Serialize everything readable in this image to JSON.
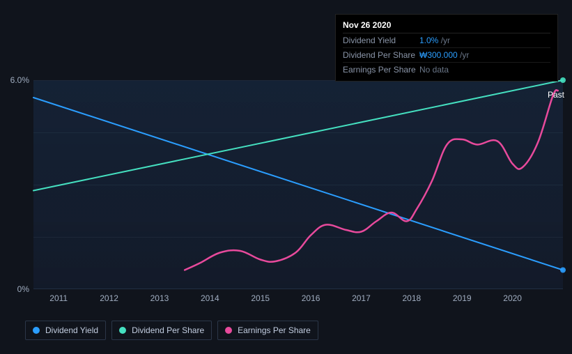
{
  "chart": {
    "type": "line",
    "background_color": "#10141c",
    "plot_gradient_top": "rgba(30,60,100,0.35)",
    "plot_gradient_bottom": "rgba(20,30,50,0.6)",
    "grid_color": "rgba(100,120,150,0.12)",
    "axis_label_color": "#a0adc0",
    "axis_fontsize": 12,
    "xlim": [
      2010.5,
      2021.0
    ],
    "ylim": [
      0,
      6
    ],
    "y_ticks": [
      {
        "value": 0,
        "label": "0%"
      },
      {
        "value": 6,
        "label": "6.0%"
      }
    ],
    "x_ticks": [
      {
        "value": 2011,
        "label": "2011"
      },
      {
        "value": 2012,
        "label": "2012"
      },
      {
        "value": 2013,
        "label": "2013"
      },
      {
        "value": 2014,
        "label": "2014"
      },
      {
        "value": 2015,
        "label": "2015"
      },
      {
        "value": 2016,
        "label": "2016"
      },
      {
        "value": 2017,
        "label": "2017"
      },
      {
        "value": 2018,
        "label": "2018"
      },
      {
        "value": 2019,
        "label": "2019"
      },
      {
        "value": 2020,
        "label": "2020"
      }
    ],
    "past_label": "Past",
    "series": {
      "dividend_yield": {
        "label": "Dividend Yield",
        "color": "#2b9eff",
        "line_width": 2,
        "end_marker": true,
        "points": [
          {
            "x": 2010.5,
            "y": 5.5
          },
          {
            "x": 2021.0,
            "y": 0.55
          }
        ]
      },
      "dividend_per_share": {
        "label": "Dividend Per Share",
        "color": "#45e0c0",
        "line_width": 2,
        "end_marker": true,
        "points": [
          {
            "x": 2010.5,
            "y": 2.83
          },
          {
            "x": 2021.0,
            "y": 6.0
          }
        ]
      },
      "earnings_per_share": {
        "label": "Earnings Per Share",
        "color": "#e84a9c",
        "line_width": 2.5,
        "end_marker": false,
        "points": [
          {
            "x": 2013.5,
            "y": 0.55
          },
          {
            "x": 2013.8,
            "y": 0.75
          },
          {
            "x": 2014.2,
            "y": 1.05
          },
          {
            "x": 2014.6,
            "y": 1.1
          },
          {
            "x": 2015.0,
            "y": 0.85
          },
          {
            "x": 2015.3,
            "y": 0.8
          },
          {
            "x": 2015.7,
            "y": 1.05
          },
          {
            "x": 2016.0,
            "y": 1.55
          },
          {
            "x": 2016.3,
            "y": 1.85
          },
          {
            "x": 2016.7,
            "y": 1.7
          },
          {
            "x": 2017.0,
            "y": 1.65
          },
          {
            "x": 2017.3,
            "y": 1.95
          },
          {
            "x": 2017.6,
            "y": 2.2
          },
          {
            "x": 2017.9,
            "y": 1.95
          },
          {
            "x": 2018.1,
            "y": 2.3
          },
          {
            "x": 2018.4,
            "y": 3.1
          },
          {
            "x": 2018.7,
            "y": 4.15
          },
          {
            "x": 2019.0,
            "y": 4.3
          },
          {
            "x": 2019.3,
            "y": 4.15
          },
          {
            "x": 2019.7,
            "y": 4.25
          },
          {
            "x": 2020.0,
            "y": 3.6
          },
          {
            "x": 2020.2,
            "y": 3.5
          },
          {
            "x": 2020.5,
            "y": 4.2
          },
          {
            "x": 2020.8,
            "y": 5.55
          },
          {
            "x": 2020.9,
            "y": 5.7
          }
        ]
      }
    }
  },
  "tooltip": {
    "title": "Nov 26 2020",
    "rows": [
      {
        "key": "Dividend Yield",
        "value": "1.0%",
        "suffix": "/yr"
      },
      {
        "key": "Dividend Per Share",
        "value": "₩300.000",
        "suffix": "/yr"
      },
      {
        "key": "Earnings Per Share",
        "nodata": "No data"
      }
    ]
  },
  "legend": {
    "border_color": "#2b3648",
    "text_color": "#c2cde0",
    "items": [
      {
        "label": "Dividend Yield",
        "color": "#2b9eff"
      },
      {
        "label": "Dividend Per Share",
        "color": "#45e0c0"
      },
      {
        "label": "Earnings Per Share",
        "color": "#e84a9c"
      }
    ]
  }
}
